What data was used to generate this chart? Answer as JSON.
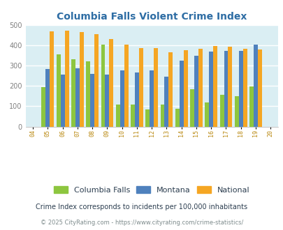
{
  "title": "Columbia Falls Violent Crime Index",
  "years": [
    2004,
    2005,
    2006,
    2007,
    2008,
    2009,
    2010,
    2011,
    2012,
    2013,
    2014,
    2015,
    2016,
    2017,
    2018,
    2019,
    2020
  ],
  "columbia_falls": [
    null,
    193,
    358,
    332,
    322,
    406,
    110,
    110,
    85,
    110,
    87,
    185,
    120,
    155,
    150,
    197,
    null
  ],
  "montana": [
    null,
    285,
    257,
    289,
    260,
    257,
    277,
    267,
    276,
    245,
    325,
    351,
    370,
    375,
    375,
    405,
    null
  ],
  "national": [
    null,
    469,
    473,
    467,
    455,
    432,
    405,
    387,
    387,
    368,
    376,
    383,
    398,
    394,
    383,
    379,
    null
  ],
  "columbia_falls_color": "#8dc63f",
  "montana_color": "#4f81bd",
  "national_color": "#f5a623",
  "background_color": "#daeef3",
  "plot_bg_color": "#daeef3",
  "ylim": [
    0,
    500
  ],
  "yticks": [
    0,
    100,
    200,
    300,
    400,
    500
  ],
  "bar_width": 0.28,
  "legend_labels": [
    "Columbia Falls",
    "Montana",
    "National"
  ],
  "footnote1": "Crime Index corresponds to incidents per 100,000 inhabitants",
  "footnote2": "© 2025 CityRating.com - https://www.cityrating.com/crime-statistics/",
  "title_color": "#2e6da4",
  "ytick_color": "#808080",
  "xtick_color": "#b8860b",
  "footnote1_color": "#2c3e50",
  "footnote2_color": "#7f8c8d",
  "grid_color": "#ffffff"
}
